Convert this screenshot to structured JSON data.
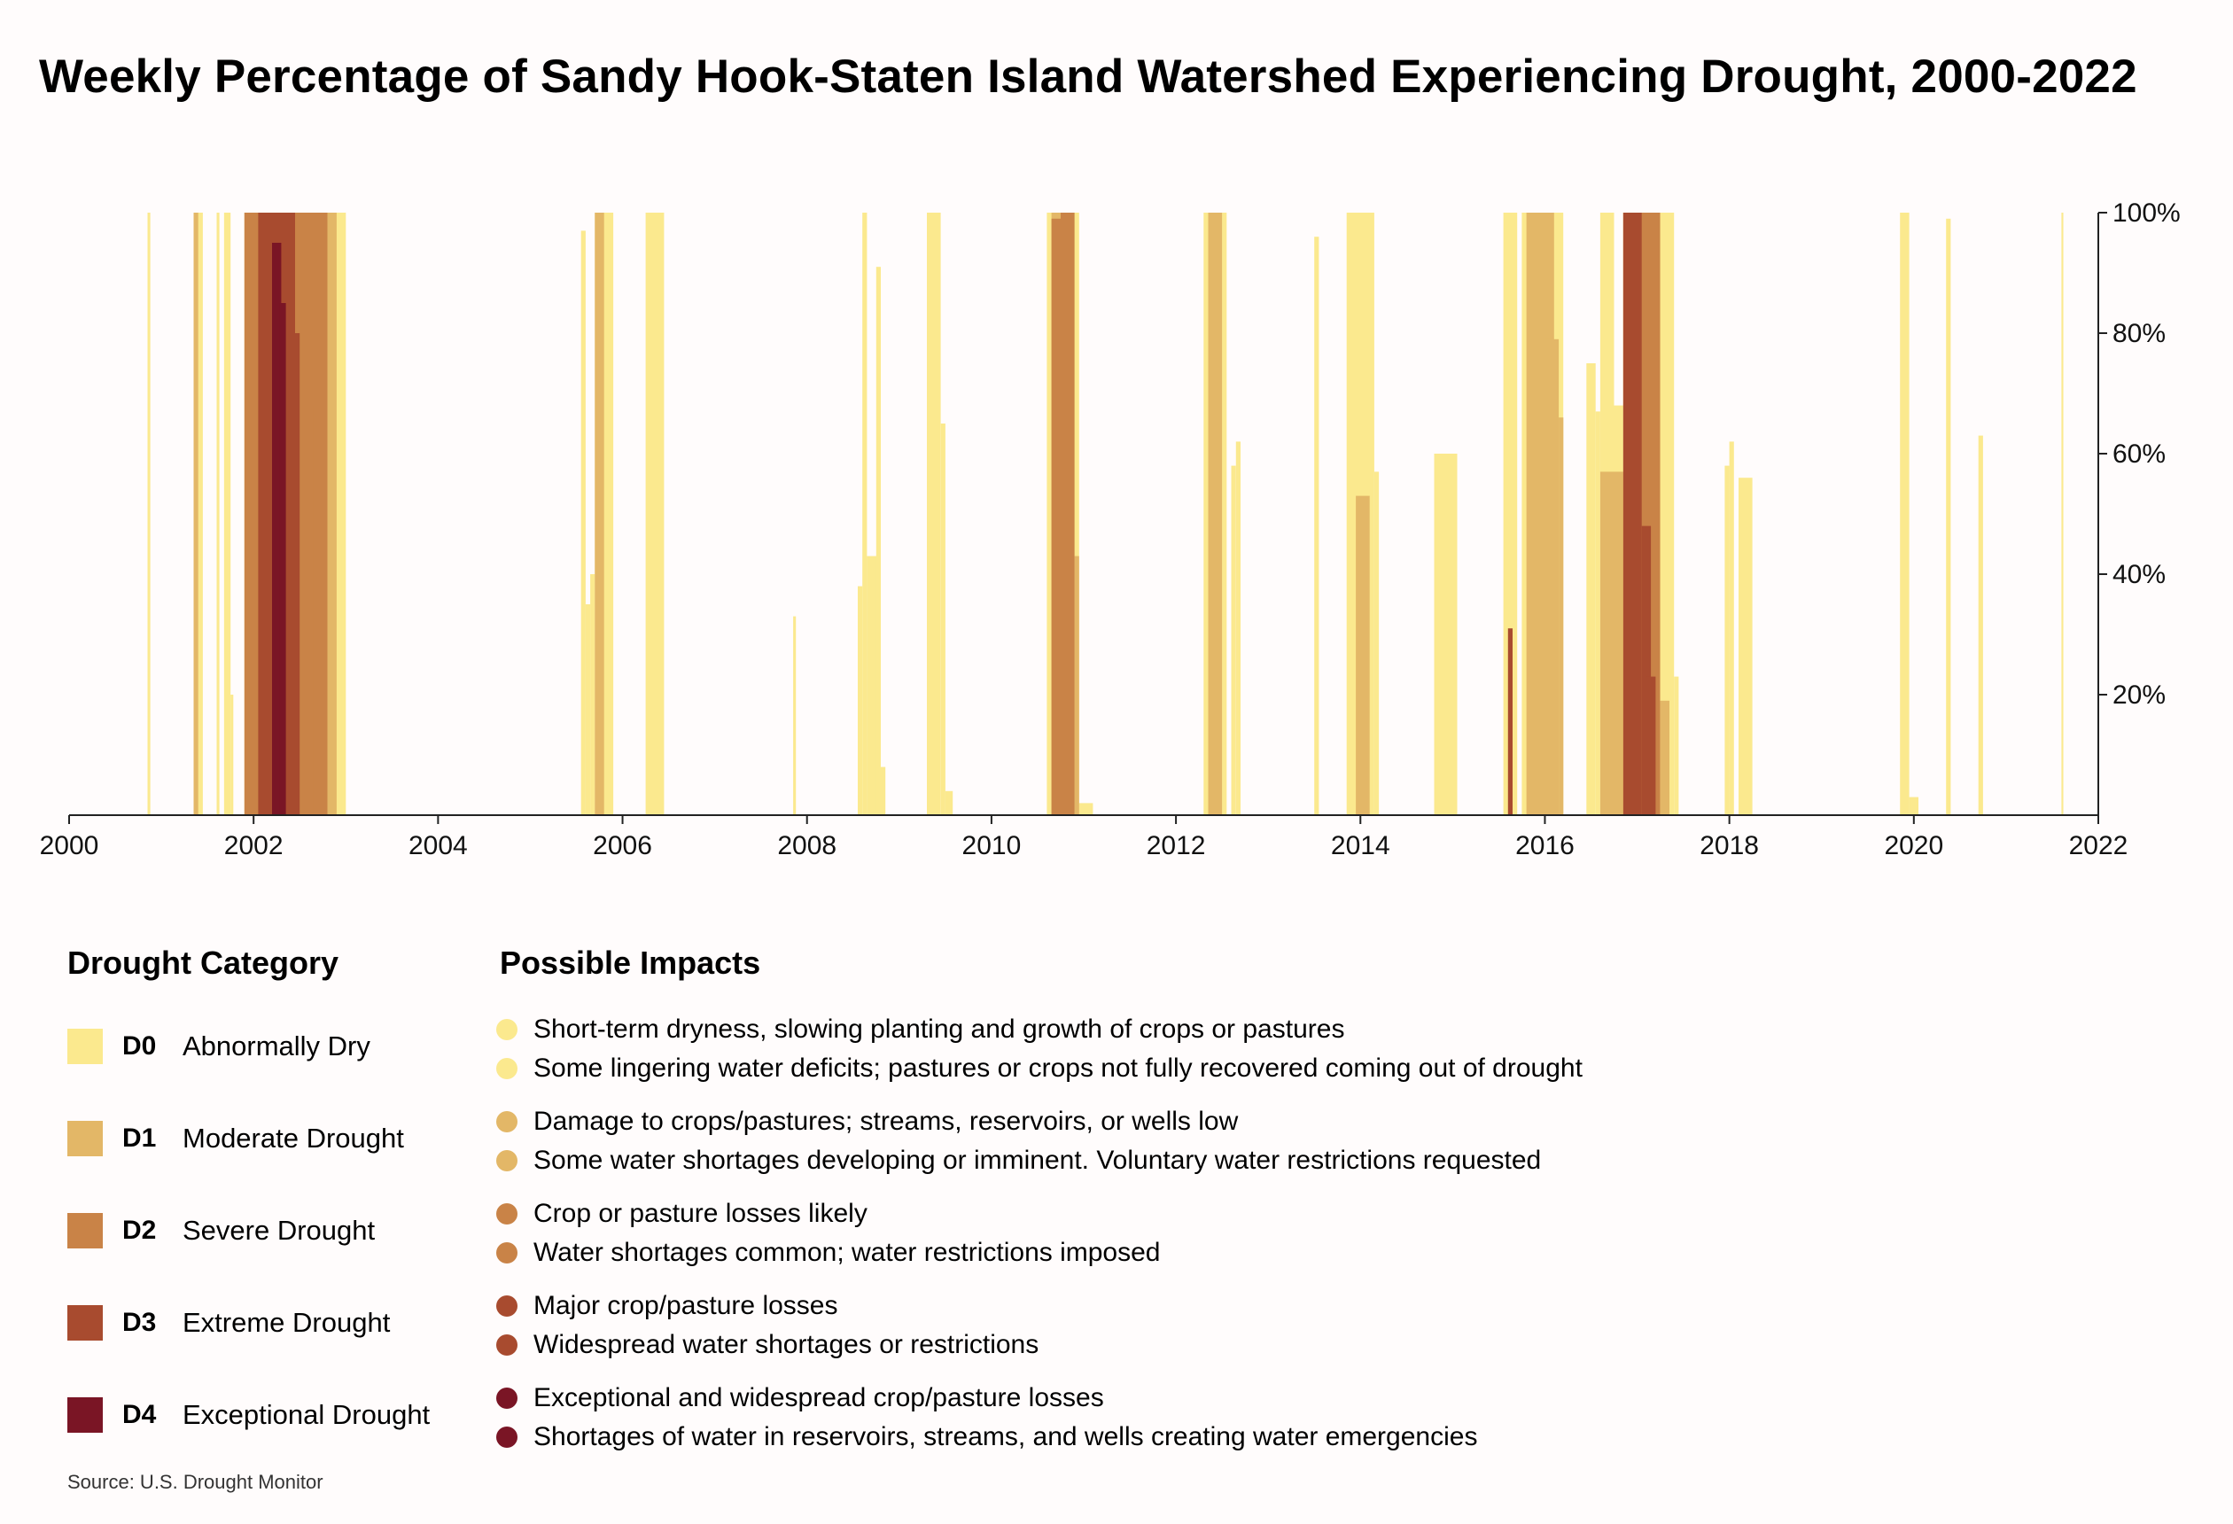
{
  "title": "Weekly Percentage of Sandy Hook-Staten Island Watershed Experiencing Drought, 2000-2022",
  "source": "Source: U.S. Drought Monitor",
  "legend": {
    "category_heading": "Drought Category",
    "impacts_heading": "Possible Impacts",
    "categories": [
      {
        "code": "D0",
        "label": "Abnormally Dry",
        "color": "#fbe98e",
        "impacts": [
          "Short-term dryness, slowing planting and growth of crops or pastures",
          "Some lingering water deficits; pastures or crops not fully recovered coming out of drought"
        ]
      },
      {
        "code": "D1",
        "label": "Moderate Drought",
        "color": "#e3b767",
        "impacts": [
          "Damage to crops/pastures; streams, reservoirs, or wells low",
          "Some water shortages developing or imminent. Voluntary water restrictions requested"
        ]
      },
      {
        "code": "D2",
        "label": "Severe Drought",
        "color": "#c98347",
        "impacts": [
          "Crop or pasture losses likely",
          "Water shortages common; water restrictions imposed"
        ]
      },
      {
        "code": "D3",
        "label": "Extreme Drought",
        "color": "#a84b2f",
        "impacts": [
          "Major crop/pasture losses",
          "Widespread water shortages or restrictions"
        ]
      },
      {
        "code": "D4",
        "label": "Exceptional Drought",
        "color": "#7a1525",
        "impacts": [
          "Exceptional and widespread crop/pasture losses",
          "Shortages of water in reservoirs, streams, and wells creating water emergencies"
        ]
      }
    ]
  },
  "chart_data": {
    "type": "area",
    "title": "Weekly Percentage of Sandy Hook-Staten Island Watershed Experiencing Drought, 2000-2022",
    "x_ticks": [
      "2000",
      "2002",
      "2004",
      "2006",
      "2008",
      "2010",
      "2012",
      "2014",
      "2016",
      "2018",
      "2020",
      "2022"
    ],
    "y_ticks": [
      "20%",
      "40%",
      "60%",
      "80%",
      "100%"
    ],
    "x_range": [
      2000,
      2022
    ],
    "y_range": [
      0,
      100
    ],
    "grid": false,
    "series": [
      {
        "name": "D0",
        "color": "#fbe98e",
        "segments": [
          [
            2000.85,
            2000.88,
            100
          ],
          [
            2001.35,
            2001.45,
            100
          ],
          [
            2001.6,
            2001.63,
            100
          ],
          [
            2001.68,
            2001.75,
            100
          ],
          [
            2001.75,
            2001.78,
            20
          ],
          [
            2001.9,
            2003.0,
            100
          ],
          [
            2002.85,
            2002.95,
            45
          ],
          [
            2005.55,
            2005.6,
            97
          ],
          [
            2005.6,
            2005.65,
            35
          ],
          [
            2005.65,
            2005.7,
            40
          ],
          [
            2005.7,
            2005.9,
            100
          ],
          [
            2006.25,
            2006.45,
            100
          ],
          [
            2007.85,
            2007.88,
            33
          ],
          [
            2008.55,
            2008.6,
            38
          ],
          [
            2008.6,
            2008.65,
            100
          ],
          [
            2008.65,
            2008.78,
            43
          ],
          [
            2008.75,
            2008.8,
            91
          ],
          [
            2008.8,
            2008.85,
            8
          ],
          [
            2009.3,
            2009.45,
            100
          ],
          [
            2009.45,
            2009.5,
            65
          ],
          [
            2009.5,
            2009.58,
            4
          ],
          [
            2010.6,
            2010.95,
            100
          ],
          [
            2010.9,
            2011.1,
            2
          ],
          [
            2012.3,
            2012.55,
            100
          ],
          [
            2012.6,
            2012.65,
            58
          ],
          [
            2012.65,
            2012.7,
            62
          ],
          [
            2013.5,
            2013.55,
            96
          ],
          [
            2013.85,
            2014.15,
            100
          ],
          [
            2014.15,
            2014.2,
            57
          ],
          [
            2014.8,
            2015.05,
            60
          ],
          [
            2015.55,
            2015.7,
            100
          ],
          [
            2015.75,
            2016.2,
            100
          ],
          [
            2016.45,
            2016.55,
            75
          ],
          [
            2016.55,
            2016.6,
            67
          ],
          [
            2016.6,
            2016.75,
            100
          ],
          [
            2016.75,
            2016.85,
            68
          ],
          [
            2016.85,
            2017.4,
            100
          ],
          [
            2017.4,
            2017.45,
            23
          ],
          [
            2017.95,
            2018.0,
            58
          ],
          [
            2018.0,
            2018.05,
            62
          ],
          [
            2018.1,
            2018.25,
            56
          ],
          [
            2019.85,
            2019.95,
            100
          ],
          [
            2019.95,
            2020.05,
            3
          ],
          [
            2020.35,
            2020.4,
            99
          ],
          [
            2020.7,
            2020.75,
            63
          ],
          [
            2021.6,
            2021.62,
            100
          ]
        ]
      },
      {
        "name": "D1",
        "color": "#e3b767",
        "segments": [
          [
            2001.35,
            2001.4,
            100
          ],
          [
            2001.95,
            2002.9,
            100
          ],
          [
            2005.7,
            2005.8,
            100
          ],
          [
            2010.65,
            2010.9,
            100
          ],
          [
            2010.9,
            2010.95,
            43
          ],
          [
            2012.35,
            2012.5,
            100
          ],
          [
            2013.95,
            2014.1,
            53
          ],
          [
            2015.8,
            2016.1,
            100
          ],
          [
            2016.0,
            2016.15,
            79
          ],
          [
            2016.15,
            2016.2,
            66
          ],
          [
            2016.6,
            2016.85,
            57
          ],
          [
            2016.85,
            2017.25,
            100
          ],
          [
            2017.25,
            2017.35,
            19
          ]
        ]
      },
      {
        "name": "D2",
        "color": "#c98347",
        "segments": [
          [
            2001.9,
            2002.8,
            100
          ],
          [
            2002.5,
            2002.65,
            68
          ],
          [
            2002.7,
            2002.8,
            55
          ],
          [
            2010.65,
            2010.8,
            99
          ],
          [
            2010.75,
            2010.9,
            100
          ],
          [
            2016.85,
            2017.25,
            100
          ]
        ]
      },
      {
        "name": "D3",
        "color": "#a84b2f",
        "segments": [
          [
            2002.05,
            2002.45,
            100
          ],
          [
            2002.45,
            2002.5,
            80
          ],
          [
            2015.6,
            2015.65,
            31
          ],
          [
            2016.85,
            2017.05,
            100
          ],
          [
            2017.05,
            2017.15,
            48
          ],
          [
            2017.1,
            2017.2,
            23
          ]
        ]
      },
      {
        "name": "D4",
        "color": "#7a1525",
        "segments": [
          [
            2002.2,
            2002.3,
            95
          ],
          [
            2002.28,
            2002.35,
            85
          ]
        ]
      }
    ]
  }
}
